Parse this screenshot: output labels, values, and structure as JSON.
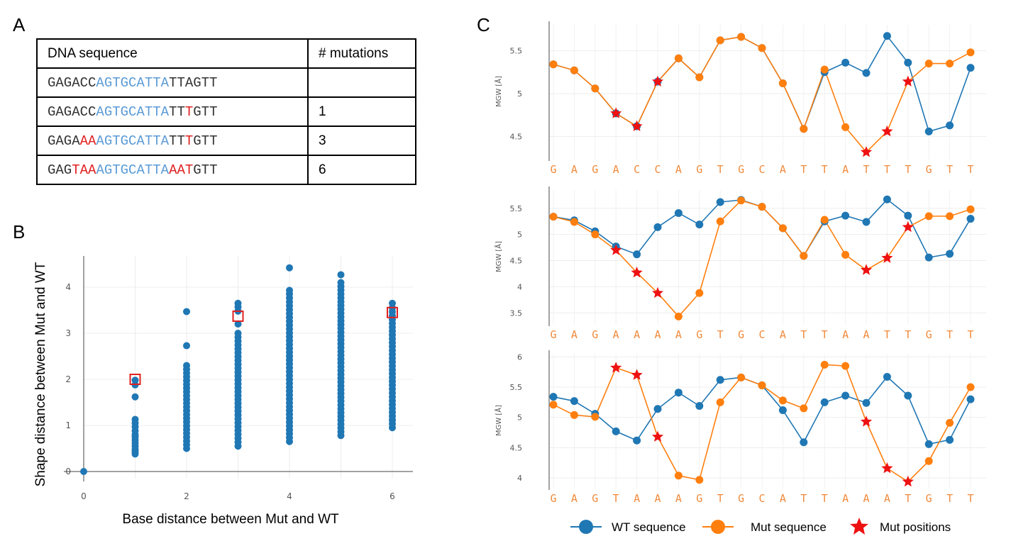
{
  "panel_labels": {
    "a": "A",
    "b": "B",
    "c": "C"
  },
  "colors": {
    "wt": "#1f77b4",
    "mut": "#ff7f0e",
    "star": "#ee1111",
    "conserved": "#5b9bd5",
    "mutated_base": "#e02020",
    "box": "#e02020"
  },
  "table": {
    "headers": [
      "DNA sequence",
      "# mutations"
    ],
    "rows": [
      {
        "segments": [
          {
            "t": "GAGACC",
            "c": "n"
          },
          {
            "t": "AGTGCATTA",
            "c": "b"
          },
          {
            "t": "TTAGTT",
            "c": "n"
          }
        ],
        "mutations": ""
      },
      {
        "segments": [
          {
            "t": "GAGACC",
            "c": "n"
          },
          {
            "t": "AGTGCATTA",
            "c": "b"
          },
          {
            "t": "TT",
            "c": "n"
          },
          {
            "t": "T",
            "c": "r"
          },
          {
            "t": "GTT",
            "c": "n"
          }
        ],
        "mutations": "1"
      },
      {
        "segments": [
          {
            "t": "GAGA",
            "c": "n"
          },
          {
            "t": "AA",
            "c": "r"
          },
          {
            "t": "AGTGCATTA",
            "c": "b"
          },
          {
            "t": "TT",
            "c": "n"
          },
          {
            "t": "T",
            "c": "r"
          },
          {
            "t": "GTT",
            "c": "n"
          }
        ],
        "mutations": "3"
      },
      {
        "segments": [
          {
            "t": "GAG",
            "c": "n"
          },
          {
            "t": "TAA",
            "c": "r"
          },
          {
            "t": "AGTGCATTA",
            "c": "b"
          },
          {
            "t": "AAT",
            "c": "r"
          },
          {
            "t": "GTT",
            "c": "n"
          }
        ],
        "mutations": "6"
      }
    ]
  },
  "chart_data": [
    {
      "type": "scatter",
      "xlabel": "Base distance between Mut and WT",
      "ylabel": "Shape distance between Mut and WT",
      "xlim": [
        -0.4,
        6.3
      ],
      "ylim": [
        -0.15,
        4.65
      ],
      "xticks": [
        0,
        2,
        4,
        6
      ],
      "yticks": [
        0,
        1,
        2,
        3,
        4
      ],
      "grid": true,
      "point_groups": [
        {
          "x": 0,
          "points": [
            0.0
          ]
        },
        {
          "x": 1,
          "points": [
            1.98,
            1.88,
            1.62,
            1.13,
            1.05,
            0.97,
            0.88,
            0.8,
            0.75,
            0.68,
            0.62,
            0.55,
            0.48,
            0.43,
            0.38
          ]
        },
        {
          "x": 2,
          "points": [
            3.47,
            2.73
          ],
          "range": [
            0.5,
            2.3
          ]
        },
        {
          "x": 3,
          "points": [
            3.65,
            3.57,
            3.48,
            3.2
          ],
          "range": [
            0.55,
            3.0
          ]
        },
        {
          "x": 4,
          "points": [
            4.42,
            3.93
          ],
          "range": [
            0.65,
            3.85
          ]
        },
        {
          "x": 5,
          "points": [
            4.27
          ],
          "range": [
            0.78,
            4.1
          ]
        },
        {
          "x": 6,
          "points": [
            3.65
          ],
          "range": [
            0.95,
            3.55
          ]
        }
      ],
      "highlighted": [
        {
          "x": 1,
          "y": 2.0
        },
        {
          "x": 3,
          "y": 3.37
        },
        {
          "x": 6,
          "y": 3.45
        }
      ]
    },
    {
      "type": "line",
      "ylabel": "MGW [Å]",
      "categories": [
        "G",
        "A",
        "G",
        "A",
        "C",
        "C",
        "A",
        "G",
        "T",
        "G",
        "C",
        "A",
        "T",
        "T",
        "A",
        "T",
        "T",
        "T",
        "G",
        "T",
        "T"
      ],
      "ylim": [
        4.25,
        5.8
      ],
      "yticks": [
        4.5,
        5,
        5.5
      ],
      "series": [
        {
          "name": "WT sequence",
          "values": [
            5.34,
            5.27,
            5.06,
            4.77,
            4.62,
            5.14,
            5.41,
            5.19,
            5.62,
            5.66,
            5.53,
            5.12,
            4.59,
            5.25,
            5.36,
            5.24,
            5.67,
            5.36,
            4.56,
            4.63,
            5.3
          ]
        },
        {
          "name": "Mut sequence",
          "values": [
            5.34,
            5.27,
            5.06,
            4.77,
            4.62,
            5.14,
            5.41,
            5.19,
            5.62,
            5.66,
            5.53,
            5.12,
            4.59,
            5.28,
            4.61,
            4.32,
            4.56,
            5.14,
            5.35,
            5.35,
            5.48
          ]
        }
      ],
      "mut_positions": [
        3,
        4,
        5,
        15,
        16,
        17
      ]
    },
    {
      "type": "line",
      "ylabel": "MGW [Å]",
      "categories": [
        "G",
        "A",
        "G",
        "A",
        "A",
        "A",
        "A",
        "G",
        "T",
        "G",
        "C",
        "A",
        "T",
        "T",
        "A",
        "A",
        "T",
        "T",
        "G",
        "T",
        "T"
      ],
      "ylim": [
        3.3,
        5.85
      ],
      "yticks": [
        3.5,
        4,
        4.5,
        5,
        5.5
      ],
      "series": [
        {
          "name": "WT sequence",
          "values": [
            5.34,
            5.27,
            5.06,
            4.77,
            4.62,
            5.14,
            5.41,
            5.19,
            5.62,
            5.66,
            5.53,
            5.12,
            4.59,
            5.25,
            5.36,
            5.24,
            5.67,
            5.36,
            4.56,
            4.63,
            5.3
          ]
        },
        {
          "name": "Mut sequence",
          "values": [
            5.34,
            5.24,
            5.0,
            4.7,
            4.27,
            3.88,
            3.43,
            3.88,
            5.25,
            5.65,
            5.53,
            5.12,
            4.59,
            5.28,
            4.61,
            4.32,
            4.55,
            5.14,
            5.35,
            5.35,
            5.48
          ]
        }
      ],
      "mut_positions": [
        3,
        4,
        5,
        15,
        16,
        17
      ]
    },
    {
      "type": "line",
      "ylabel": "MGW [Å]",
      "categories": [
        "G",
        "A",
        "G",
        "T",
        "A",
        "A",
        "A",
        "G",
        "T",
        "G",
        "C",
        "A",
        "T",
        "T",
        "A",
        "A",
        "A",
        "T",
        "G",
        "T",
        "T"
      ],
      "ylim": [
        3.85,
        6.05
      ],
      "yticks": [
        4,
        4.5,
        5,
        5.5,
        6
      ],
      "series": [
        {
          "name": "WT sequence",
          "values": [
            5.34,
            5.27,
            5.06,
            4.77,
            4.62,
            5.14,
            5.41,
            5.19,
            5.62,
            5.66,
            5.53,
            5.12,
            4.59,
            5.25,
            5.36,
            5.24,
            5.67,
            5.36,
            4.56,
            4.63,
            5.3
          ]
        },
        {
          "name": "Mut sequence",
          "values": [
            5.21,
            5.04,
            5.01,
            5.82,
            5.7,
            4.68,
            4.04,
            3.97,
            5.25,
            5.66,
            5.53,
            5.28,
            5.15,
            5.87,
            5.85,
            4.93,
            4.16,
            3.94,
            4.28,
            4.91,
            5.5
          ]
        }
      ],
      "mut_positions": [
        3,
        4,
        5,
        15,
        16,
        17
      ]
    }
  ],
  "legend": {
    "wt": "WT sequence",
    "mut": "Mut sequence",
    "star": "Mut positions"
  }
}
